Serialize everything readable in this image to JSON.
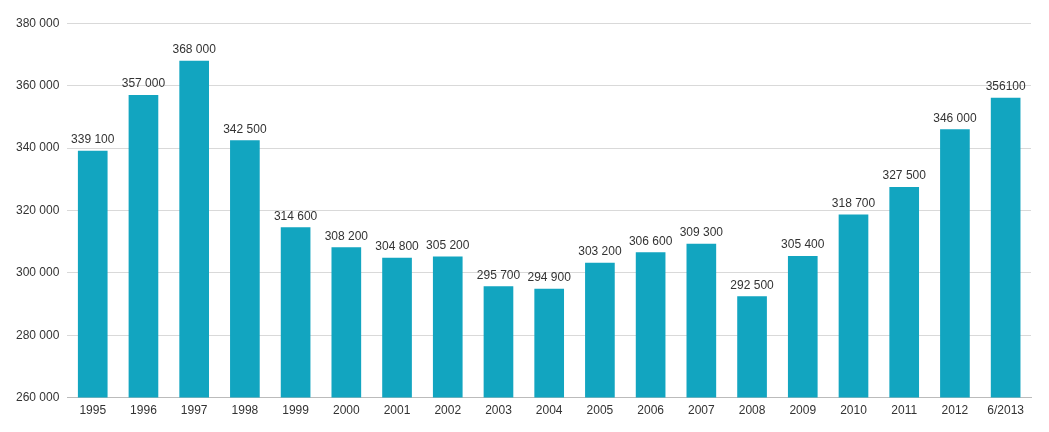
{
  "chart_data": {
    "type": "bar",
    "categories": [
      "1995",
      "1996",
      "1997",
      "1998",
      "1999",
      "2000",
      "2001",
      "2002",
      "2003",
      "2004",
      "2005",
      "2006",
      "2007",
      "2008",
      "2009",
      "2010",
      "2011",
      "2012",
      "6/2013"
    ],
    "values": [
      339100,
      357000,
      368000,
      342500,
      314600,
      308200,
      304800,
      305200,
      295700,
      294900,
      303200,
      306600,
      309300,
      292500,
      305400,
      318700,
      327500,
      346000,
      356100
    ],
    "value_labels": [
      "339 100",
      "357 000",
      "368 000",
      "342 500",
      "314 600",
      "308 200",
      "304 800",
      "305 200",
      "295 700",
      "294 900",
      "303 200",
      "306 600",
      "309 300",
      "292 500",
      "305 400",
      "318 700",
      "327 500",
      "346 000",
      "356100"
    ],
    "color": "#12a5c0",
    "ylim": [
      260000,
      380000
    ],
    "yticks": [
      {
        "value": 260000,
        "label": "260 000"
      },
      {
        "value": 280000,
        "label": "280 000"
      },
      {
        "value": 300000,
        "label": "300 000"
      },
      {
        "value": 320000,
        "label": "320 000"
      },
      {
        "value": 340000,
        "label": "340 000"
      },
      {
        "value": 360000,
        "label": "360 000"
      },
      {
        "value": 380000,
        "label": "380 000"
      }
    ],
    "grid": "y",
    "legend": false
  }
}
